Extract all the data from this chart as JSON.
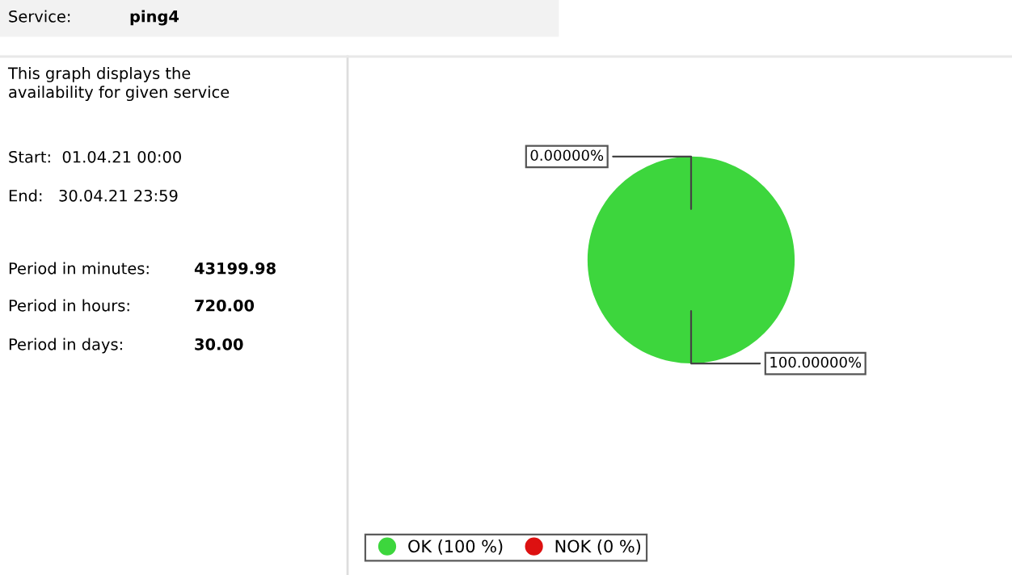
{
  "chart_data": [
    {
      "type": "other",
      "annotations": [
        "Service:",
        "ping4",
        "This graph displays the\navailability for given service",
        "Start:  01.04.21 00:00",
        "End:   30.04.21 23:59",
        "Period in minutes:",
        "43199.98",
        "Period in hours:",
        "720.00",
        "Period in days:",
        "30.00"
      ]
    },
    {
      "type": "pie",
      "categories": [
        "OK (100 %)",
        "NOK (0 %)"
      ],
      "values": [
        100,
        0
      ],
      "colors": [
        "#3dd63d",
        "#dd1111"
      ],
      "value_labels": [
        "100.00000%",
        "0.00000%"
      ],
      "legend": "bottom"
    }
  ]
}
